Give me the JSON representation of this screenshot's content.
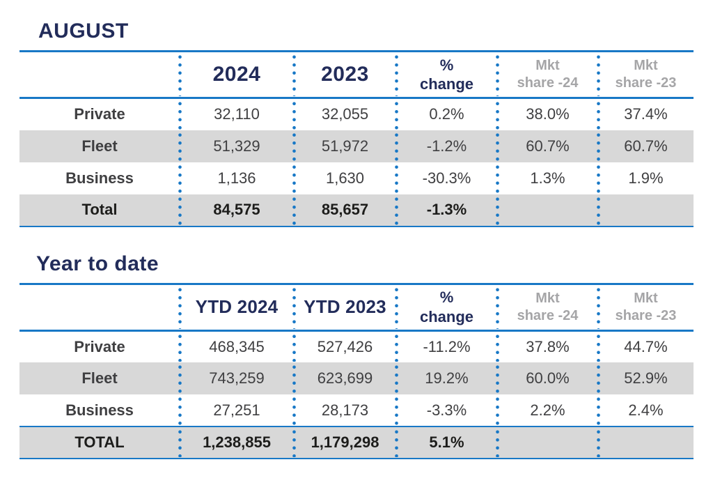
{
  "colors": {
    "accent_blue": "#1878c6",
    "heading_navy": "#222c5a",
    "row_band_gray": "#d8d8d8",
    "muted_header_gray": "#a5a5a7",
    "label_black": "#1d1d1b",
    "value_gray": "#3f3f41"
  },
  "chart_data": [
    {
      "type": "table",
      "title": "AUGUST",
      "columns": [
        "",
        "2024",
        "2023",
        "% change",
        "Mkt share -24",
        "Mkt share -23"
      ],
      "header_lines": [
        [
          "",
          ""
        ],
        [
          "2024",
          ""
        ],
        [
          "2023",
          ""
        ],
        [
          "%",
          "change"
        ],
        [
          "Mkt",
          "share -24"
        ],
        [
          "Mkt",
          "share -23"
        ]
      ],
      "rows": [
        {
          "cells": [
            "Private",
            "32,110",
            "32,055",
            "0.2%",
            "38.0%",
            "37.4%"
          ]
        },
        {
          "cells": [
            "Fleet",
            "51,329",
            "51,972",
            "-1.2%",
            "60.7%",
            "60.7%"
          ]
        },
        {
          "cells": [
            "Business",
            "1,136",
            "1,630",
            "-30.3%",
            "1.3%",
            "1.9%"
          ]
        },
        {
          "cells": [
            "Total",
            "84,575",
            "85,657",
            "-1.3%",
            "",
            ""
          ]
        }
      ]
    },
    {
      "type": "table",
      "title": "Year to date",
      "columns": [
        "",
        "YTD 2024",
        "YTD 2023",
        "% change",
        "Mkt share -24",
        "Mkt share -23"
      ],
      "header_lines": [
        [
          "",
          ""
        ],
        [
          "YTD 2024",
          ""
        ],
        [
          "YTD 2023",
          ""
        ],
        [
          "%",
          "change"
        ],
        [
          "Mkt",
          "share -24"
        ],
        [
          "Mkt",
          "share -23"
        ]
      ],
      "rows": [
        {
          "cells": [
            "Private",
            "468,345",
            "527,426",
            "-11.2%",
            "37.8%",
            "44.7%"
          ]
        },
        {
          "cells": [
            "Fleet",
            "743,259",
            "623,699",
            "19.2%",
            "60.0%",
            "52.9%"
          ]
        },
        {
          "cells": [
            "Business",
            "27,251",
            "28,173",
            "-3.3%",
            "2.2%",
            "2.4%"
          ]
        },
        {
          "cells": [
            "TOTAL",
            "1,238,855",
            "1,179,298",
            "5.1%",
            "",
            ""
          ]
        }
      ]
    }
  ]
}
